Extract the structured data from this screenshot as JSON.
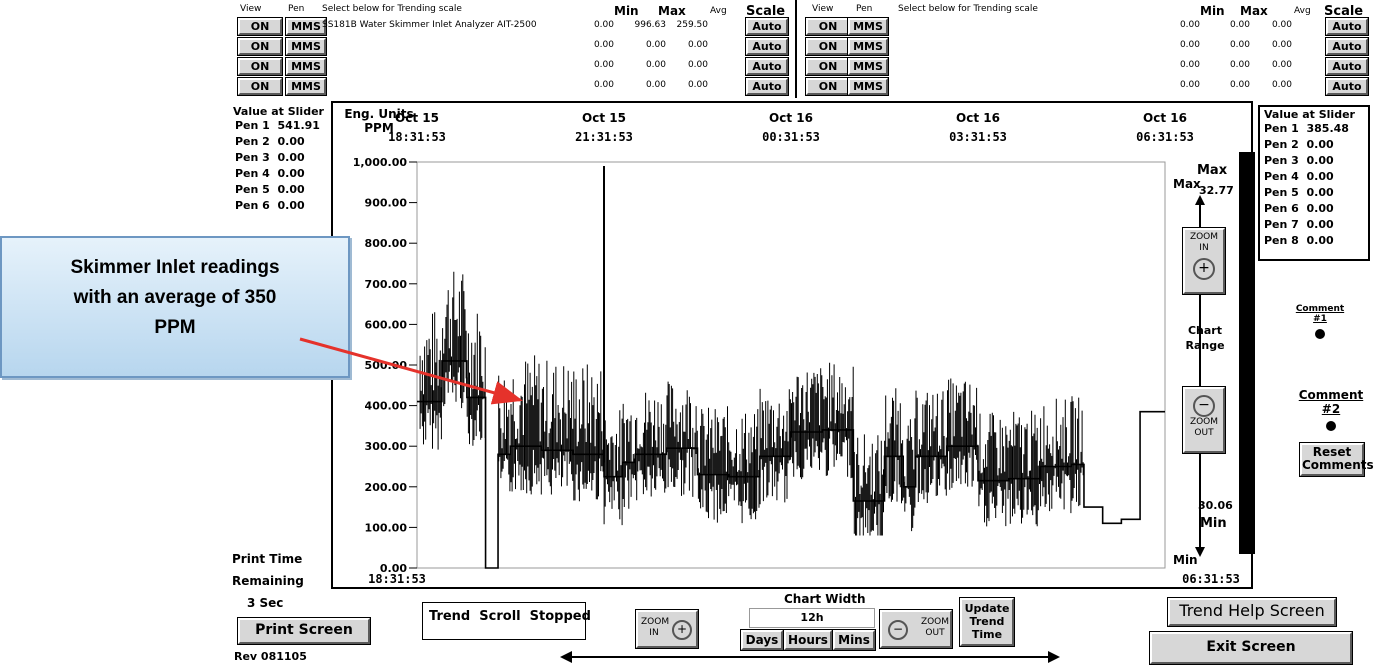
{
  "pen_table": {
    "headers": {
      "view": "View",
      "pen": "Pen",
      "select": "Select below for Trending scale",
      "min": "Min",
      "max": "Max",
      "avg": "Avg",
      "scale": "Scale"
    },
    "left_rows": [
      {
        "view": "ON",
        "pen": "MMS",
        "name": "SS181B Water Skimmer Inlet Analyzer AIT-2500",
        "min": "0.00",
        "max": "996.63",
        "avg": "259.50",
        "scale": "Auto"
      },
      {
        "view": "ON",
        "pen": "MMS",
        "name": "",
        "min": "0.00",
        "max": "0.00",
        "avg": "0.00",
        "scale": "Auto"
      },
      {
        "view": "ON",
        "pen": "MMS",
        "name": "",
        "min": "0.00",
        "max": "0.00",
        "avg": "0.00",
        "scale": "Auto"
      },
      {
        "view": "ON",
        "pen": "MMS",
        "name": "",
        "min": "0.00",
        "max": "0.00",
        "avg": "0.00",
        "scale": "Auto"
      }
    ],
    "right_rows": [
      {
        "view": "ON",
        "pen": "MMS",
        "name": "",
        "min": "0.00",
        "max": "0.00",
        "avg": "0.00",
        "scale": "Auto"
      },
      {
        "view": "ON",
        "pen": "MMS",
        "name": "",
        "min": "0.00",
        "max": "0.00",
        "avg": "0.00",
        "scale": "Auto"
      },
      {
        "view": "ON",
        "pen": "MMS",
        "name": "",
        "min": "0.00",
        "max": "0.00",
        "avg": "0.00",
        "scale": "Auto"
      },
      {
        "view": "ON",
        "pen": "MMS",
        "name": "",
        "min": "0.00",
        "max": "0.00",
        "avg": "0.00",
        "scale": "Auto"
      }
    ]
  },
  "slider_left": {
    "title": "Value at Slider",
    "pens": [
      "Pen 1  541.91",
      "Pen 2  0.00",
      "Pen 3  0.00",
      "Pen 4  0.00",
      "Pen 5  0.00",
      "Pen 6  0.00"
    ]
  },
  "slider_right": {
    "title": "Value at Slider",
    "pens": [
      "Pen 1  385.48",
      "Pen 2  0.00",
      "Pen 3  0.00",
      "Pen 4  0.00",
      "Pen 5  0.00",
      "Pen 6  0.00",
      "Pen 7  0.00",
      "Pen 8  0.00"
    ]
  },
  "callout": {
    "line1": "Skimmer Inlet readings",
    "line2": "with an average of 350",
    "line3": "PPM"
  },
  "chart_data": {
    "type": "line",
    "ylabel_line1": "Eng. Units",
    "ylabel_line2": "PPM",
    "ylim": [
      0,
      1000
    ],
    "yticks": [
      "1,000.00",
      "900.00",
      "800.00",
      "700.00",
      "600.00",
      "500.00",
      "400.00",
      "300.00",
      "200.00",
      "100.00",
      "0.00"
    ],
    "time_labels": [
      {
        "date": "Oct 15",
        "time": "18:31:53"
      },
      {
        "date": "Oct 15",
        "time": "21:31:53"
      },
      {
        "date": "Oct 16",
        "time": "00:31:53"
      },
      {
        "date": "Oct 16",
        "time": "03:31:53"
      },
      {
        "date": "Oct 16",
        "time": "06:31:53"
      }
    ],
    "start_time": "18:31:53",
    "start_date": "10/15/2010",
    "end_time": "06:31:53",
    "end_date": "10/16/2010",
    "max_label": "Max",
    "min_label": "Min",
    "series": [
      {
        "color": "#000000",
        "x_hours": [
          0,
          0.4,
          0.8,
          1.1,
          1.3,
          1.5,
          2.0,
          2.5,
          3.0,
          3.3,
          3.5,
          4.0,
          4.5,
          5.0,
          5.5,
          6.0,
          6.5,
          7.0,
          7.5,
          7.8,
          8.0,
          8.5,
          9.0,
          9.5,
          10.0,
          10.5,
          10.7,
          11.0,
          11.3,
          11.6,
          12.0
        ],
        "values": [
          410,
          510,
          420,
          0,
          280,
          300,
          290,
          280,
          225,
          260,
          280,
          295,
          230,
          225,
          275,
          335,
          340,
          165,
          275,
          200,
          275,
          300,
          215,
          220,
          250,
          255,
          150,
          110,
          120,
          385,
          385
        ]
      }
    ]
  },
  "zoom_panel": {
    "max_label": "Max",
    "max_value": "32.77",
    "zoom_in": "ZOOM IN",
    "chart_range": "Chart Range",
    "zoom_out": "ZOOM OUT",
    "min_value": "30.06",
    "min_label": "Min"
  },
  "comments": {
    "c1": "Comment #1",
    "c2": "Comment #2",
    "reset": "Reset Comments"
  },
  "bottom": {
    "print_time": "Print Time",
    "remaining": "Remaining",
    "sec": "3 Sec",
    "print_screen": "Print Screen",
    "rev": "Rev 081105",
    "trend_status": "Trend  Scroll  Stopped",
    "chart_width_title": "Chart Width",
    "chart_width_value": "12h",
    "zoom_in": "ZOOM IN",
    "zoom_out": "ZOOM OUT",
    "days": "Days",
    "hours": "Hours",
    "mins": "Mins",
    "update_trend_time": "Update Trend Time",
    "trend_help": "Trend Help Screen",
    "exit": "Exit Screen"
  }
}
